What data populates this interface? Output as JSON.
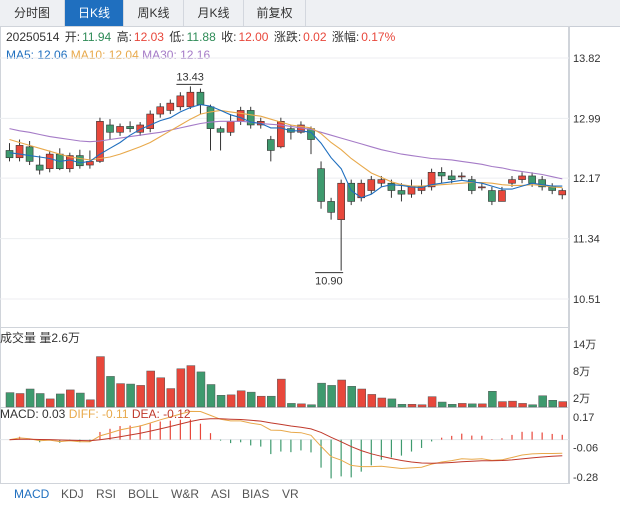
{
  "tabs": [
    "分时图",
    "日K线",
    "周K线",
    "月K线",
    "前复权"
  ],
  "active_tab": 1,
  "info": {
    "date": "20250514",
    "open_label": "开:",
    "open": "11.94",
    "high_label": "高:",
    "high": "12.03",
    "low_label": "低:",
    "low": "11.88",
    "close_label": "收:",
    "close": "12.00",
    "change_label": "涨跌:",
    "change": "0.02",
    "pct_label": "涨幅:",
    "pct": "0.17%"
  },
  "ma": {
    "ma5": "MA5: 12.06",
    "ma10": "MA10: 12.04",
    "ma30": "MA30: 12.16"
  },
  "price_axis": [
    "13.82",
    "12.99",
    "12.17",
    "11.34",
    "10.51"
  ],
  "annotations": {
    "high": "13.43",
    "low": "10.90"
  },
  "volume": {
    "label": "成交量 量2.6万",
    "axis": [
      "14万",
      "8万",
      "2万"
    ]
  },
  "macd": {
    "macd": "MACD: 0.03",
    "diff": "DIFF: -0.11",
    "dea": "DEA: -0.12",
    "axis": [
      "0.17",
      "-0.06",
      "-0.28"
    ]
  },
  "indicator_tabs": [
    "MACD",
    "KDJ",
    "RSI",
    "BOLL",
    "W&R",
    "ASI",
    "BIAS",
    "VR"
  ],
  "active_indicator": 0,
  "colors": {
    "up": "#e8473b",
    "down": "#3e9a6e",
    "ma5": "#1f6fbf",
    "ma10": "#e8a94b",
    "ma30": "#a57bc7",
    "accent": "#1f6fbf"
  },
  "chart_data": {
    "type": "candlestick",
    "price_range": [
      10.51,
      13.82
    ],
    "volume_range_wan": [
      0,
      14
    ],
    "macd_range": [
      -0.28,
      0.17
    ],
    "candles": [
      [
        12.55,
        12.45,
        12.65,
        12.4,
        3.2
      ],
      [
        12.45,
        12.62,
        12.7,
        12.4,
        3.0
      ],
      [
        12.6,
        12.4,
        12.68,
        12.35,
        4.0
      ],
      [
        12.35,
        12.28,
        12.48,
        12.22,
        3.0
      ],
      [
        12.3,
        12.5,
        12.55,
        12.25,
        1.8
      ],
      [
        12.5,
        12.3,
        12.58,
        12.28,
        2.9
      ],
      [
        12.3,
        12.48,
        12.52,
        12.25,
        3.8
      ],
      [
        12.48,
        12.34,
        12.56,
        12.3,
        3.1
      ],
      [
        12.35,
        12.4,
        12.55,
        12.3,
        1.6
      ],
      [
        12.4,
        12.95,
        13.0,
        12.38,
        11.2
      ],
      [
        12.9,
        12.8,
        12.98,
        12.7,
        6.8
      ],
      [
        12.8,
        12.88,
        12.92,
        12.75,
        5.2
      ],
      [
        12.88,
        12.85,
        12.95,
        12.8,
        5.1
      ],
      [
        12.8,
        12.9,
        12.94,
        12.75,
        4.8
      ],
      [
        12.85,
        13.05,
        13.1,
        12.8,
        8.0
      ],
      [
        13.05,
        13.15,
        13.2,
        13.0,
        6.5
      ],
      [
        13.1,
        13.2,
        13.25,
        13.05,
        4.1
      ],
      [
        13.15,
        13.3,
        13.35,
        13.1,
        8.5
      ],
      [
        13.15,
        13.35,
        13.43,
        13.12,
        9.2
      ],
      [
        13.35,
        13.18,
        13.4,
        13.05,
        7.8
      ],
      [
        13.15,
        12.85,
        13.18,
        12.55,
        5.0
      ],
      [
        12.85,
        12.8,
        12.88,
        12.55,
        2.6
      ],
      [
        12.8,
        12.95,
        13.05,
        12.75,
        2.7
      ],
      [
        12.95,
        13.1,
        13.15,
        12.9,
        3.6
      ],
      [
        13.1,
        12.9,
        13.15,
        12.85,
        3.3
      ],
      [
        12.9,
        12.95,
        13.0,
        12.85,
        2.4
      ],
      [
        12.7,
        12.55,
        12.75,
        12.4,
        2.4
      ],
      [
        12.6,
        12.95,
        13.0,
        12.58,
        6.2
      ],
      [
        12.85,
        12.8,
        12.9,
        12.7,
        0.8
      ],
      [
        12.8,
        12.9,
        12.95,
        12.78,
        0.7
      ],
      [
        12.85,
        12.7,
        12.88,
        12.5,
        0.5
      ],
      [
        12.3,
        11.85,
        12.4,
        11.75,
        5.3
      ],
      [
        11.85,
        11.7,
        11.9,
        11.6,
        4.8
      ],
      [
        11.6,
        12.1,
        12.15,
        10.9,
        6.0
      ],
      [
        12.1,
        11.85,
        12.15,
        11.8,
        4.6
      ],
      [
        11.9,
        12.1,
        12.15,
        11.85,
        4.0
      ],
      [
        12.0,
        12.15,
        12.2,
        11.95,
        2.8
      ],
      [
        12.1,
        12.15,
        12.2,
        12.05,
        2.0
      ],
      [
        12.1,
        12.0,
        12.15,
        11.9,
        1.8
      ],
      [
        12.0,
        11.95,
        12.1,
        11.85,
        0.6
      ],
      [
        11.95,
        12.05,
        12.15,
        11.9,
        0.6
      ],
      [
        12.0,
        12.05,
        12.15,
        11.95,
        0.5
      ],
      [
        12.05,
        12.25,
        12.3,
        12.0,
        2.3
      ],
      [
        12.25,
        12.2,
        12.32,
        12.1,
        1.1
      ],
      [
        12.2,
        12.15,
        12.28,
        12.1,
        0.6
      ],
      [
        12.2,
        12.2,
        12.25,
        12.15,
        0.8
      ],
      [
        12.15,
        12.0,
        12.2,
        11.95,
        0.7
      ],
      [
        12.05,
        12.05,
        12.1,
        12.0,
        0.7
      ],
      [
        12.0,
        11.85,
        12.05,
        11.8,
        3.5
      ],
      [
        11.85,
        12.0,
        12.05,
        11.85,
        1.2
      ],
      [
        12.1,
        12.15,
        12.2,
        12.05,
        1.3
      ],
      [
        12.15,
        12.2,
        12.25,
        12.1,
        0.8
      ],
      [
        12.2,
        12.1,
        12.25,
        12.05,
        0.5
      ],
      [
        12.15,
        12.05,
        12.2,
        12.0,
        2.5
      ],
      [
        12.05,
        12.0,
        12.1,
        11.95,
        1.5
      ],
      [
        11.94,
        12.0,
        12.03,
        11.88,
        1.2
      ]
    ],
    "ma5": [
      12.52,
      12.5,
      12.48,
      12.46,
      12.44,
      12.4,
      12.42,
      12.38,
      12.4,
      12.5,
      12.58,
      12.66,
      12.76,
      12.84,
      12.9,
      12.96,
      13.0,
      13.08,
      13.14,
      13.18,
      13.16,
      13.1,
      13.04,
      13.0,
      12.94,
      12.92,
      12.86,
      12.86,
      12.82,
      12.82,
      12.8,
      12.65,
      12.45,
      12.3,
      12.0,
      11.9,
      11.95,
      12.05,
      12.08,
      12.07,
      12.05,
      12.04,
      12.08,
      12.1,
      12.12,
      12.14,
      12.12,
      12.1,
      12.06,
      12.02,
      12.02,
      12.06,
      12.1,
      12.08,
      12.06,
      12.06
    ],
    "ma10": [
      12.7,
      12.66,
      12.62,
      12.58,
      12.54,
      12.5,
      12.46,
      12.44,
      12.42,
      12.44,
      12.46,
      12.5,
      12.55,
      12.6,
      12.66,
      12.74,
      12.82,
      12.9,
      12.98,
      13.05,
      13.08,
      13.1,
      13.08,
      13.06,
      13.04,
      13.02,
      12.98,
      12.94,
      12.9,
      12.88,
      12.86,
      12.78,
      12.66,
      12.56,
      12.44,
      12.34,
      12.24,
      12.18,
      12.12,
      12.08,
      12.06,
      12.06,
      12.07,
      12.08,
      12.09,
      12.1,
      12.11,
      12.11,
      12.1,
      12.08,
      12.07,
      12.07,
      12.08,
      12.07,
      12.05,
      12.04
    ],
    "ma30": [
      12.85,
      12.82,
      12.8,
      12.77,
      12.74,
      12.72,
      12.7,
      12.68,
      12.67,
      12.68,
      12.7,
      12.72,
      12.74,
      12.76,
      12.78,
      12.8,
      12.83,
      12.86,
      12.89,
      12.92,
      12.94,
      12.95,
      12.95,
      12.95,
      12.94,
      12.92,
      12.91,
      12.9,
      12.88,
      12.86,
      12.84,
      12.8,
      12.76,
      12.72,
      12.68,
      12.64,
      12.6,
      12.56,
      12.53,
      12.5,
      12.48,
      12.46,
      12.44,
      12.43,
      12.42,
      12.4,
      12.38,
      12.36,
      12.33,
      12.31,
      12.28,
      12.26,
      12.24,
      12.22,
      12.19,
      12.16
    ]
  }
}
